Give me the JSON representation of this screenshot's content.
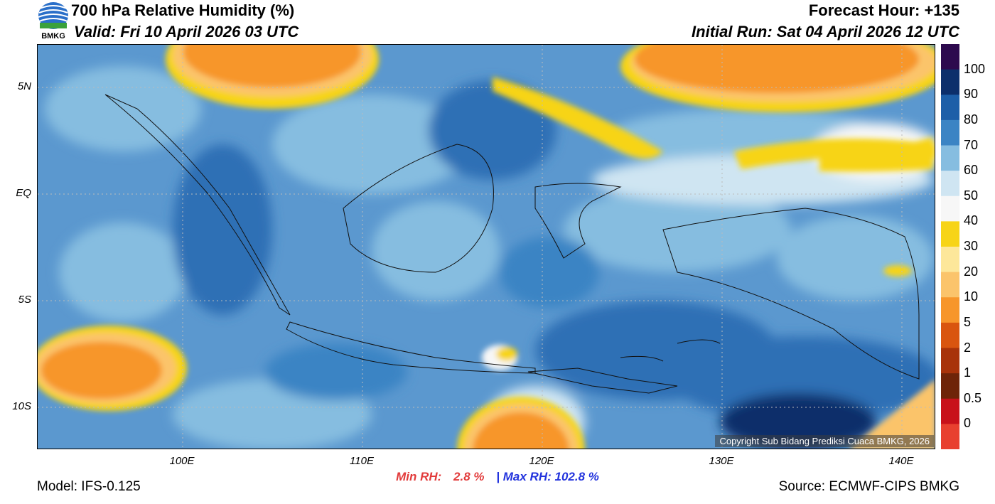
{
  "header": {
    "title": "700 hPa Relative Humidity (%)",
    "valid": "Valid: Fri 10 April 2026 03 UTC",
    "forecast_hour": "Forecast Hour: +135",
    "initial_run": "Initial Run: Sat 04 April 2026 12 UTC",
    "logo_text": "BMKG"
  },
  "map": {
    "lat_labels": [
      "5N",
      "EQ",
      "5S",
      "10S"
    ],
    "lon_labels": [
      "100E",
      "110E",
      "120E",
      "130E",
      "140E"
    ],
    "copyright": "Copyright Sub Bidang Prediksi Cuaca BMKG, 2026"
  },
  "legend": {
    "labels": [
      "100",
      "90",
      "80",
      "70",
      "60",
      "50",
      "40",
      "30",
      "20",
      "10",
      "5",
      "2",
      "1",
      "0.5",
      "0"
    ],
    "colors": [
      "#2d0a4e",
      "#0c2f6b",
      "#1d5fa8",
      "#3b84c4",
      "#86bde0",
      "#cfe5f2",
      "#f7f7f7",
      "#f7d417",
      "#fde79a",
      "#fbc46b",
      "#f7962b",
      "#d9550f",
      "#a8330a",
      "#6e2408",
      "#c8111a",
      "#e8402f"
    ]
  },
  "footer": {
    "min_rh_label": "Min RH:",
    "min_rh_value": "2.8 %",
    "separator": "|",
    "max_rh_label": "Max RH:",
    "max_rh_value": "102.8 %",
    "model": "Model: IFS-0.125",
    "source": "Source: ECMWF-CIPS BMKG"
  }
}
